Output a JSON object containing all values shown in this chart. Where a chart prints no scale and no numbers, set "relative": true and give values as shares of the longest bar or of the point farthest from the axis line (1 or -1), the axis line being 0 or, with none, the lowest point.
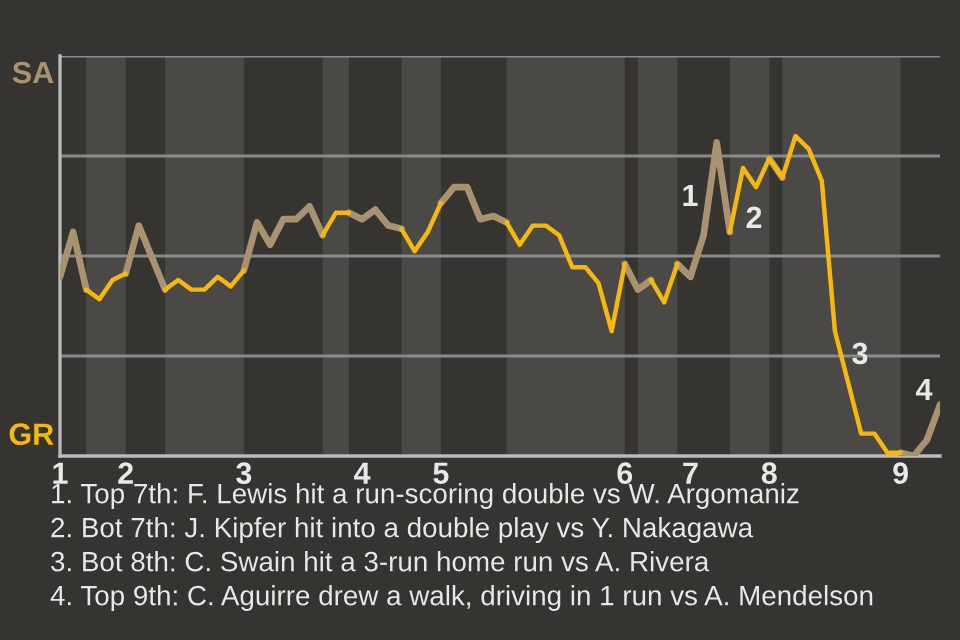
{
  "chart_data": {
    "type": "line",
    "relative": true,
    "categories": [
      "1",
      null,
      null,
      null,
      null,
      "2",
      null,
      null,
      null,
      null,
      null,
      null,
      null,
      null,
      "3",
      null,
      null,
      null,
      null,
      null,
      null,
      null,
      null,
      "4",
      null,
      null,
      null,
      null,
      null,
      "5",
      null,
      null,
      null,
      null,
      null,
      null,
      null,
      null,
      null,
      null,
      null,
      null,
      null,
      "6",
      null,
      null,
      null,
      null,
      "7",
      null,
      null,
      null,
      null,
      null,
      "8",
      null,
      null,
      null,
      null,
      null,
      null,
      null,
      null,
      null,
      "9",
      null,
      null,
      null
    ],
    "series": [
      {
        "color": "#a89270",
        "values": [
          0.56,
          0.7,
          0.52,
          null,
          null,
          0.57,
          0.72,
          0.62,
          0.52,
          null,
          null,
          null,
          null,
          null,
          0.58,
          0.73,
          0.66,
          0.74,
          0.74,
          0.78,
          0.69,
          null,
          0.76,
          0.74,
          0.77,
          0.72,
          0.71,
          null,
          null,
          0.79,
          0.84,
          0.84,
          0.74,
          0.75,
          0.73,
          null,
          null,
          null,
          null,
          null,
          null,
          null,
          null,
          0.6,
          0.52,
          0.55,
          null,
          0.6,
          0.56,
          0.69,
          0.98,
          0.7,
          null,
          null,
          0.93,
          0.87,
          null,
          null,
          null,
          null,
          null,
          null,
          null,
          null,
          0.01,
          0,
          0.05,
          0.16
        ]
      },
      {
        "color": "#f5b80f",
        "values": [
          null,
          null,
          0.52,
          0.49,
          0.55,
          0.57,
          null,
          null,
          0.52,
          0.55,
          0.52,
          0.52,
          0.56,
          0.53,
          0.58,
          null,
          null,
          null,
          null,
          null,
          0.69,
          0.76,
          0.76,
          null,
          null,
          null,
          0.71,
          0.64,
          0.7,
          0.79,
          null,
          null,
          null,
          null,
          0.73,
          0.66,
          0.72,
          0.72,
          0.69,
          0.59,
          0.59,
          0.54,
          0.39,
          0.6,
          null,
          0.55,
          0.48,
          0.6,
          null,
          null,
          null,
          0.7,
          0.9,
          0.84,
          0.93,
          0.87,
          1,
          0.96,
          0.86,
          0.39,
          0.23,
          0.07,
          0.07,
          0.01,
          0.01,
          null,
          null,
          null
        ]
      }
    ],
    "grid": "y",
    "annotations": [
      "SA",
      "GR",
      "1",
      "2",
      "3",
      "4",
      "1. Top 7th: F. Lewis hit a run-scoring double vs W. Argomaniz",
      "2. Bot 7th: J. Kipfer hit into a double play vs Y. Nakagawa",
      "3. Bot 8th: C. Swain hit a 3-run home run vs A. Rivera",
      "4. Top 9th: C. Aguirre drew a walk, driving in 1 run vs A. Mendelson"
    ]
  }
}
